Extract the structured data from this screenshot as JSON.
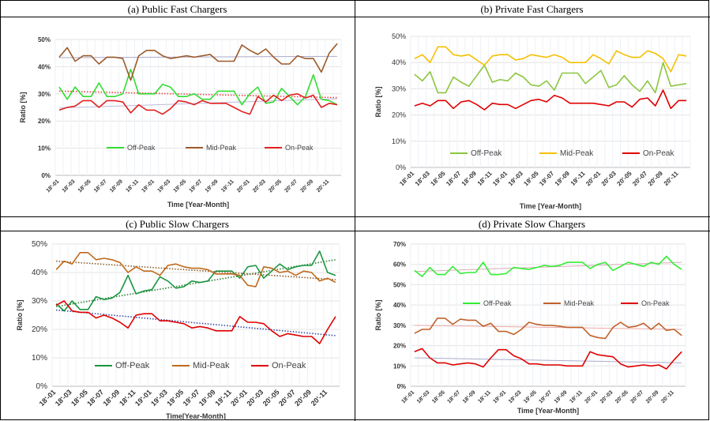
{
  "chart_data": [
    {
      "type": "line",
      "title": "(a) Public Fast Chargers",
      "xlabel": "Time [Year-Month]",
      "ylabel": "Ratio [%]",
      "ylim": [
        0,
        50
      ],
      "yticks": [
        "0%",
        "10%",
        "20%",
        "30%",
        "40%",
        "50%"
      ],
      "categories": [
        "18'-01",
        "18'-02",
        "18'-03",
        "18'-04",
        "18'-05",
        "18'-06",
        "18'-07",
        "18'-08",
        "18'-09",
        "18'-10",
        "18'-11",
        "18'-12",
        "19'-01",
        "19'-02",
        "19'-03",
        "19'-04",
        "19'-05",
        "19'-06",
        "19'-07",
        "19'-08",
        "19'-09",
        "19'-10",
        "19'-11",
        "19'-12",
        "20'-01",
        "20'-02",
        "20'-03",
        "20'-04",
        "20'-05",
        "20'-06",
        "20'-07",
        "20'-08",
        "20'-09",
        "20'-10",
        "20'-11",
        "20'-12"
      ],
      "xticks": [
        "18'-01",
        "18'-03",
        "18'-05",
        "18'-07",
        "18'-09",
        "18'-11",
        "19'-01",
        "19'-03",
        "19'-05",
        "19'-07",
        "19'-09",
        "19'-11",
        "20'-01",
        "20'-03",
        "20'-05",
        "20'-07",
        "20'-09",
        "20'-11"
      ],
      "legend": "middle",
      "series": [
        {
          "name": "Off-Peak",
          "color": "#33dd33",
          "values": [
            32.5,
            28,
            32.5,
            29,
            29,
            34,
            29,
            29,
            30,
            39,
            30,
            30,
            30,
            33.5,
            32.5,
            29,
            29,
            30,
            28,
            28,
            31,
            31,
            31,
            26,
            30,
            32.5,
            26.5,
            27,
            32,
            29,
            26,
            29,
            37,
            28,
            27.5,
            26
          ]
        },
        {
          "name": "Mid-Peak",
          "color": "#9c5a2a",
          "values": [
            43.5,
            47,
            42,
            44,
            44,
            41,
            43.5,
            43.5,
            43,
            35,
            44,
            46,
            46,
            44,
            43,
            43.5,
            44,
            43.5,
            44,
            44.5,
            42,
            42,
            42,
            48,
            46,
            44.5,
            46.5,
            43.5,
            41,
            41,
            44,
            43,
            43,
            38,
            45,
            48.5
          ]
        },
        {
          "name": "On-Peak",
          "color": "#e02020",
          "values": [
            24,
            25,
            25.5,
            27.5,
            27.5,
            25,
            27.5,
            27.5,
            27,
            23,
            26,
            24,
            24,
            22.5,
            24.5,
            27.5,
            27,
            26,
            27.5,
            26.5,
            26.5,
            26.5,
            25,
            23.5,
            22.5,
            29,
            27,
            29.5,
            27.5,
            29.5,
            30,
            28.5,
            29.5,
            25,
            26.5,
            26
          ]
        }
      ],
      "trendlines": [
        {
          "series": "Off-Peak",
          "color": "#bbbbdd",
          "style": "solid",
          "values": [
            24.8,
            28.2
          ]
        },
        {
          "series": "Mid-Peak",
          "color": "#aaaacc",
          "style": "solid",
          "values": [
            43.3,
            43.8
          ]
        },
        {
          "series": "On-Peak",
          "color": "#ee4444",
          "style": "dotted",
          "values": [
            31,
            28.6
          ]
        }
      ]
    },
    {
      "type": "line",
      "title": "(b) Private Fast Chargers",
      "xlabel": "Time [Year-Month]",
      "ylabel": "Ratio [%]",
      "ylim": [
        0,
        50
      ],
      "yticks": [
        "0%",
        "10%",
        "20%",
        "30%",
        "40%",
        "50%"
      ],
      "categories": [
        "18'-01",
        "18'-02",
        "18'-03",
        "18'-04",
        "18'-05",
        "18'-06",
        "18'-07",
        "18'-08",
        "18'-09",
        "18'-10",
        "18'-11",
        "18'-12",
        "19'-01",
        "19'-02",
        "19'-03",
        "19'-04",
        "19'-05",
        "19'-06",
        "19'-07",
        "19'-08",
        "19'-09",
        "19'-10",
        "19'-11",
        "19'-12",
        "20'-01",
        "20'-02",
        "20'-03",
        "20'-04",
        "20'-05",
        "20'-06",
        "20'-07",
        "20'-08",
        "20'-09",
        "20'-10",
        "20'-11",
        "20'-12"
      ],
      "xticks": [
        "18'-01",
        "18'-03",
        "18'-05",
        "18'-07",
        "18'-09",
        "18'-11",
        "19'-01",
        "19'-03",
        "19'-05",
        "19'-07",
        "19'-09",
        "19'-11",
        "20'-01",
        "20'-03",
        "20'-05",
        "20'-07",
        "20'-09",
        "20'-11"
      ],
      "legend": "middle",
      "series": [
        {
          "name": "Off-Peak",
          "color": "#8dc63f",
          "values": [
            35.5,
            33,
            36.5,
            28.5,
            28.5,
            34.5,
            32.5,
            31,
            35,
            39,
            32.5,
            33.5,
            33,
            36,
            34.5,
            31.5,
            31,
            33,
            29.5,
            36,
            36,
            36,
            32,
            34.5,
            37,
            30.5,
            31.5,
            35,
            31.5,
            29,
            33,
            28.5,
            40,
            31,
            31.5,
            32
          ]
        },
        {
          "name": "Mid-Peak",
          "color": "#f5c000",
          "values": [
            41.5,
            43,
            40,
            46,
            46,
            43,
            42.5,
            43,
            41,
            39,
            42.5,
            43,
            43,
            41,
            41.5,
            43,
            42.5,
            42,
            43,
            42,
            40,
            40,
            40,
            43,
            41.5,
            39.5,
            44.5,
            43,
            42,
            42,
            44.5,
            43.5,
            41.5,
            36.5,
            43,
            42.5
          ]
        },
        {
          "name": "On-Peak",
          "color": "#e00000",
          "values": [
            23.5,
            24.5,
            23.5,
            25.5,
            25.5,
            22.5,
            25,
            25.5,
            24,
            22,
            24.5,
            24,
            24,
            22.5,
            24,
            25.5,
            26,
            25,
            27.5,
            26.5,
            24.5,
            24.5,
            24.5,
            24.5,
            24,
            23.5,
            25,
            25,
            23,
            26,
            26.5,
            23.5,
            29.5,
            22.5,
            25.5,
            25.5
          ]
        }
      ],
      "trendlines": []
    },
    {
      "type": "line",
      "title": "(c) Public Slow Chargers",
      "xlabel": "Time[Year-Month]",
      "ylabel": "Ratio [%]",
      "ylim": [
        0,
        50
      ],
      "yticks": [
        "0%",
        "10%",
        "20%",
        "30%",
        "40%",
        "50%"
      ],
      "categories": [
        "18'-01",
        "18'-02",
        "18'-03",
        "18'-04",
        "18'-05",
        "18'-06",
        "18'-07",
        "18'-08",
        "18'-09",
        "18'-10",
        "18'-11",
        "18'-12",
        "19'-01",
        "19'-02",
        "19'-03",
        "19'-04",
        "19'-05",
        "19'-06",
        "19'-07",
        "19'-08",
        "19'-09",
        "19'-10",
        "19'-11",
        "19'-12",
        "20'-01",
        "20'-02",
        "20'-03",
        "20'-04",
        "20'-05",
        "20'-06",
        "20'-07",
        "20'-08",
        "20'-09",
        "20'-10",
        "20'-11",
        "20'-12"
      ],
      "xticks": [
        "18'-01",
        "18'-03",
        "18'-05",
        "18'-07",
        "18'-09",
        "18'-11",
        "19'-01",
        "19'-03",
        "19'-05",
        "19'-07",
        "19'-09",
        "19'-11",
        "20'-01",
        "20'-03",
        "20'-05",
        "20'-07",
        "20'-09",
        "20'-11"
      ],
      "legend": "bottom",
      "series": [
        {
          "name": "Off-Peak",
          "color": "#1a9641",
          "values": [
            29,
            26.5,
            30,
            27,
            27,
            31.5,
            30.5,
            31,
            33,
            39,
            32.5,
            33.5,
            34,
            38.5,
            37,
            34.5,
            35,
            37,
            36.5,
            37,
            40.5,
            40.5,
            40.5,
            38,
            42,
            42.5,
            38,
            40.5,
            43,
            41,
            42,
            42.5,
            42.5,
            47.5,
            40,
            39
          ]
        },
        {
          "name": "Mid-Peak",
          "color": "#bf6a1c",
          "values": [
            41,
            44,
            43,
            47,
            47,
            44.5,
            45,
            44.5,
            43.5,
            40,
            42,
            40.5,
            40.5,
            39,
            42.5,
            43,
            42,
            41.5,
            41.5,
            41,
            39.5,
            39.5,
            39.5,
            39,
            35.5,
            35,
            42,
            41.5,
            40,
            40.5,
            39,
            40.5,
            40,
            37,
            38,
            36.5
          ]
        },
        {
          "name": "On-Peak",
          "color": "#e00000",
          "values": [
            28.5,
            30,
            26.5,
            26,
            26,
            24,
            25,
            24,
            22.5,
            20.5,
            25,
            25.5,
            25.5,
            23,
            23,
            22.5,
            22,
            20.5,
            21,
            20.5,
            19.5,
            19.5,
            19.5,
            24.5,
            22.5,
            22.5,
            22,
            19.5,
            17.5,
            18.5,
            18,
            17.5,
            17.5,
            15,
            20,
            24.5
          ]
        }
      ],
      "trendlines": [
        {
          "series": "Off-Peak",
          "color": "#2e7d32",
          "style": "dotted",
          "values": [
            28,
            44.5
          ]
        },
        {
          "series": "Mid-Peak",
          "color": "#8d5a24",
          "style": "dotted",
          "values": [
            44,
            37.5
          ]
        },
        {
          "series": "On-Peak",
          "color": "#3b4ba8",
          "style": "dotted",
          "values": [
            26.8,
            17.8
          ]
        }
      ]
    },
    {
      "type": "line",
      "title": "(d) Private Slow Chargers",
      "xlabel": "Time [Year-Month]",
      "ylabel": "Ratio [%]",
      "ylim": [
        0,
        70
      ],
      "yticks": [
        "0%",
        "10%",
        "20%",
        "30%",
        "40%",
        "50%",
        "60%",
        "70%"
      ],
      "categories": [
        "18'-01",
        "18'-02",
        "18'-03",
        "18'-04",
        "18'-05",
        "18'-06",
        "18'-07",
        "18'-08",
        "18'-09",
        "18'-10",
        "18'-11",
        "18'-12",
        "19'-01",
        "19'-02",
        "19'-03",
        "19'-04",
        "19'-05",
        "19'-06",
        "19'-07",
        "19'-08",
        "19'-09",
        "19'-10",
        "19'-11",
        "19'-12",
        "20'-01",
        "20'-02",
        "20'-03",
        "20'-04",
        "20'-05",
        "20'-06",
        "20'-07",
        "20'-08",
        "20'-09",
        "20'-10",
        "20'-11",
        "20'-12"
      ],
      "xticks": [
        "18'-01",
        "18'-03",
        "18'-05",
        "18'-07",
        "18'-09",
        "18'-11",
        "19'-01",
        "19'-03",
        "19'-05",
        "19'-07",
        "19'-09",
        "19'-11",
        "20'-01",
        "20'-03",
        "20'-05",
        "20'-07",
        "20'-09",
        "20'-11"
      ],
      "legend": "middle",
      "series": [
        {
          "name": "Off-Peak",
          "color": "#33ee33",
          "values": [
            57,
            54,
            58.5,
            55,
            55,
            59,
            55.5,
            56,
            56,
            61,
            55,
            55,
            55.5,
            58.5,
            58,
            57.5,
            58.5,
            59.5,
            59,
            59.5,
            61,
            61,
            61,
            58,
            60,
            61,
            57,
            59,
            61,
            60,
            59,
            61,
            60,
            64,
            60,
            57.5
          ]
        },
        {
          "name": "Mid-Peak",
          "color": "#c0622a",
          "values": [
            26,
            28,
            28,
            33.5,
            33.5,
            30.5,
            33,
            32.5,
            32.5,
            29.5,
            31,
            27,
            27,
            25.5,
            28,
            31.5,
            30.5,
            30,
            30,
            29.5,
            29,
            29,
            29,
            25,
            24,
            23.5,
            29,
            31.5,
            29,
            29.5,
            31,
            28,
            31,
            27.5,
            28,
            25
          ]
        },
        {
          "name": "On-Peak",
          "color": "#e00000",
          "values": [
            17,
            18.5,
            14,
            11.5,
            11.5,
            10.5,
            11,
            11.5,
            11,
            9.5,
            14,
            18,
            18,
            15,
            13.5,
            11,
            11,
            10.5,
            10.5,
            10.5,
            10,
            10,
            10,
            17,
            15.5,
            15,
            14.5,
            11,
            9.5,
            10,
            10.5,
            10,
            10.5,
            8.5,
            13,
            17
          ]
        }
      ],
      "trendlines": [
        {
          "series": "Off-Peak",
          "color": "#ddaabb",
          "style": "solid",
          "values": [
            56.5,
            61
          ]
        },
        {
          "series": "Mid-Peak",
          "color": "#eeaaaa",
          "style": "solid",
          "values": [
            30,
            28
          ]
        },
        {
          "series": "On-Peak",
          "color": "#aaaacc",
          "style": "solid",
          "values": [
            14,
            11.5
          ]
        }
      ]
    }
  ]
}
